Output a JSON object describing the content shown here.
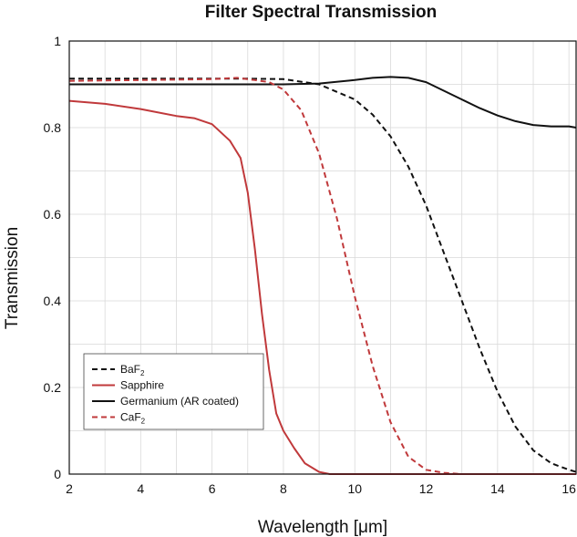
{
  "chart_data": {
    "type": "line",
    "title": "Filter Spectral Transmission",
    "xlabel": "Wavelength [μm]",
    "ylabel": "Transmission",
    "xlim": [
      2,
      16.2
    ],
    "ylim": [
      0,
      1
    ],
    "x_ticks": [
      2,
      4,
      6,
      8,
      10,
      12,
      14,
      16
    ],
    "y_ticks": [
      0,
      0.2,
      0.4,
      0.6,
      0.8,
      1
    ],
    "y_tick_labels": [
      "0",
      "0.2",
      "0.4",
      "0.6",
      "0.8",
      "1"
    ],
    "grid": true,
    "legend_position": "bottom-left",
    "series": [
      {
        "name": "BaF",
        "name_subscript": "2",
        "color": "#111111",
        "dash": "dashed",
        "x": [
          2,
          4,
          6,
          7,
          8,
          9,
          10,
          10.5,
          11,
          11.5,
          12,
          12.5,
          13,
          13.5,
          14,
          14.5,
          15,
          15.5,
          16,
          16.2
        ],
        "y": [
          0.913,
          0.913,
          0.913,
          0.913,
          0.912,
          0.9,
          0.865,
          0.83,
          0.78,
          0.71,
          0.62,
          0.51,
          0.4,
          0.29,
          0.19,
          0.11,
          0.055,
          0.025,
          0.01,
          0.005
        ]
      },
      {
        "name": "Sapphire",
        "color": "#c0393b",
        "dash": "solid",
        "x": [
          2,
          3,
          4,
          5,
          5.5,
          6,
          6.5,
          6.8,
          7,
          7.2,
          7.4,
          7.6,
          7.8,
          8,
          8.3,
          8.6,
          9,
          9.3,
          10,
          12,
          14,
          16.2
        ],
        "y": [
          0.862,
          0.855,
          0.843,
          0.827,
          0.822,
          0.808,
          0.77,
          0.73,
          0.65,
          0.52,
          0.37,
          0.24,
          0.14,
          0.1,
          0.06,
          0.025,
          0.005,
          0,
          0,
          0,
          0,
          0
        ]
      },
      {
        "name": "Germanium (AR coated)",
        "color": "#111111",
        "dash": "solid",
        "x": [
          2,
          4,
          6,
          8,
          9,
          10,
          10.5,
          11,
          11.5,
          12,
          12.5,
          13,
          13.5,
          14,
          14.5,
          15,
          15.5,
          16,
          16.2
        ],
        "y": [
          0.9,
          0.9,
          0.9,
          0.9,
          0.902,
          0.91,
          0.915,
          0.917,
          0.915,
          0.905,
          0.885,
          0.865,
          0.845,
          0.828,
          0.815,
          0.806,
          0.803,
          0.803,
          0.8
        ]
      },
      {
        "name": "CaF",
        "name_subscript": "2",
        "color": "#c0393b",
        "dash": "dashed",
        "x": [
          2,
          4,
          6,
          6.7,
          7.2,
          7.6,
          8,
          8.5,
          9,
          9.5,
          10,
          10.5,
          11,
          11.5,
          12,
          12.5,
          13,
          14,
          16.2
        ],
        "y": [
          0.908,
          0.91,
          0.912,
          0.915,
          0.91,
          0.905,
          0.888,
          0.84,
          0.74,
          0.59,
          0.41,
          0.25,
          0.12,
          0.04,
          0.01,
          0.003,
          0,
          0,
          0
        ]
      }
    ]
  }
}
